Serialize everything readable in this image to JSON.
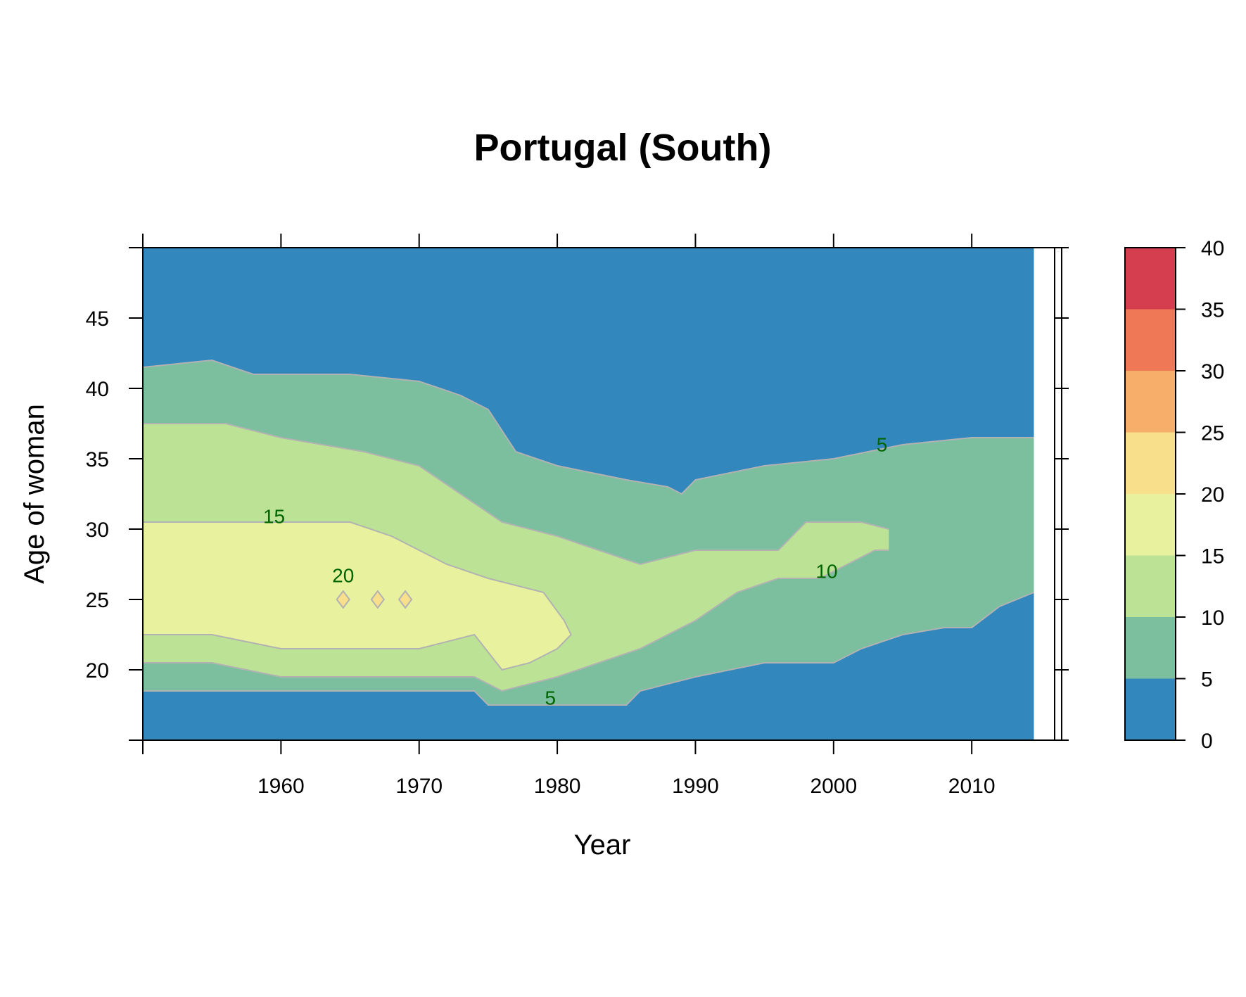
{
  "chart_data": {
    "type": "heatmap",
    "title": "Portugal (South)",
    "xlabel": "Year",
    "ylabel": "Age of woman",
    "xlim": [
      1950,
      2016
    ],
    "ylim": [
      15,
      50
    ],
    "x_ticks": [
      1950,
      1960,
      1970,
      1980,
      1990,
      2000,
      2010
    ],
    "x_tick_labels": [
      "1960",
      "1970",
      "1980",
      "1990",
      "2000",
      "2010"
    ],
    "y_ticks": [
      15,
      20,
      25,
      30,
      35,
      40,
      45,
      50
    ],
    "y_tick_labels": [
      "20",
      "25",
      "30",
      "35",
      "40",
      "45"
    ],
    "data_x_max": 2014.5,
    "color_key": {
      "breaks": [
        0,
        5,
        10,
        15,
        20,
        25,
        30,
        35,
        40
      ],
      "labels": [
        "0",
        "5",
        "10",
        "15",
        "20",
        "25",
        "30",
        "35",
        "40"
      ],
      "colors": [
        "#3288BD",
        "#7BBF9E",
        "#BCE395",
        "#E8F29E",
        "#F8DF8B",
        "#F8AE6B",
        "#EF7857",
        "#D53E4F"
      ]
    },
    "contour_color": "#B2B2B2",
    "contour_label_color": "#006400",
    "bands": [
      {
        "level": "5-10",
        "lower": [
          [
            1950,
            18.5
          ],
          [
            1955,
            18.5
          ],
          [
            1960,
            18.5
          ],
          [
            1965,
            18.5
          ],
          [
            1970,
            18.5
          ],
          [
            1974,
            18.5
          ],
          [
            1975,
            17.5
          ],
          [
            1980,
            17.5
          ],
          [
            1985,
            17.5
          ],
          [
            1986,
            18.5
          ],
          [
            1990,
            19.5
          ],
          [
            1995,
            20.5
          ],
          [
            2000,
            20.5
          ],
          [
            2002,
            21.5
          ],
          [
            2005,
            22.5
          ],
          [
            2008,
            23
          ],
          [
            2010,
            23
          ],
          [
            2012,
            24.5
          ],
          [
            2014.5,
            25.5
          ]
        ],
        "upper": [
          [
            1950,
            41.5
          ],
          [
            1955,
            42
          ],
          [
            1958,
            41
          ],
          [
            1960,
            41
          ],
          [
            1965,
            41
          ],
          [
            1970,
            40.5
          ],
          [
            1973,
            39.5
          ],
          [
            1975,
            38.5
          ],
          [
            1977,
            35.5
          ],
          [
            1980,
            34.5
          ],
          [
            1985,
            33.5
          ],
          [
            1988,
            33
          ],
          [
            1989,
            32.5
          ],
          [
            1990,
            33.5
          ],
          [
            1995,
            34.5
          ],
          [
            2000,
            35
          ],
          [
            2005,
            36
          ],
          [
            2010,
            36.5
          ],
          [
            2014.5,
            36.5
          ]
        ]
      },
      {
        "level": "10-15",
        "lower": [
          [
            1950,
            20.5
          ],
          [
            1955,
            20.5
          ],
          [
            1960,
            19.5
          ],
          [
            1965,
            19.5
          ],
          [
            1970,
            19.5
          ],
          [
            1974,
            19.5
          ],
          [
            1976,
            18.5
          ],
          [
            1980,
            19.5
          ],
          [
            1983,
            20.5
          ],
          [
            1986,
            21.5
          ],
          [
            1990,
            23.5
          ],
          [
            1993,
            25.5
          ],
          [
            1996,
            26.5
          ],
          [
            1999,
            26.5
          ],
          [
            2001,
            27.5
          ],
          [
            2003,
            28.5
          ],
          [
            2004,
            28.5
          ]
        ],
        "upper": [
          [
            2004,
            30
          ],
          [
            2002,
            30.5
          ],
          [
            1998,
            30.5
          ],
          [
            1996,
            28.5
          ],
          [
            1994,
            28.5
          ],
          [
            1990,
            28.5
          ],
          [
            1986,
            27.5
          ],
          [
            1983,
            28.5
          ],
          [
            1980,
            29.5
          ],
          [
            1976,
            30.5
          ],
          [
            1973,
            32.5
          ],
          [
            1970,
            34.5
          ],
          [
            1966,
            35.5
          ],
          [
            1960,
            36.5
          ],
          [
            1956,
            37.5
          ],
          [
            1950,
            37.5
          ]
        ]
      },
      {
        "level": "15-20",
        "lower": [
          [
            1950,
            22.5
          ],
          [
            1955,
            22.5
          ],
          [
            1960,
            21.5
          ],
          [
            1965,
            21.5
          ],
          [
            1970,
            21.5
          ],
          [
            1974,
            22.5
          ],
          [
            1976,
            20
          ],
          [
            1978,
            20.5
          ],
          [
            1980,
            21.5
          ],
          [
            1981,
            22.5
          ],
          [
            1980.5,
            23.5
          ],
          [
            1979,
            25.5
          ]
        ],
        "upper": [
          [
            1979,
            25.5
          ],
          [
            1975,
            26.5
          ],
          [
            1972,
            27.5
          ],
          [
            1970,
            28.5
          ],
          [
            1968,
            29.5
          ],
          [
            1965,
            30.5
          ],
          [
            1960,
            30.5
          ],
          [
            1955,
            30.5
          ],
          [
            1950,
            30.5
          ]
        ]
      }
    ],
    "specks": [
      {
        "level": "20-25",
        "x": 1964.5,
        "y": 25
      },
      {
        "level": "20-25",
        "x": 1967,
        "y": 25
      },
      {
        "level": "20-25",
        "x": 1969,
        "y": 25
      }
    ],
    "contour_labels": [
      {
        "text": "15",
        "x": 1959.5,
        "y": 30.8
      },
      {
        "text": "20",
        "x": 1964.5,
        "y": 26.6
      },
      {
        "text": "5",
        "x": 2003.5,
        "y": 35.9
      },
      {
        "text": "10",
        "x": 1999.5,
        "y": 26.9
      },
      {
        "text": "5",
        "x": 1979.5,
        "y": 17.9
      }
    ]
  }
}
